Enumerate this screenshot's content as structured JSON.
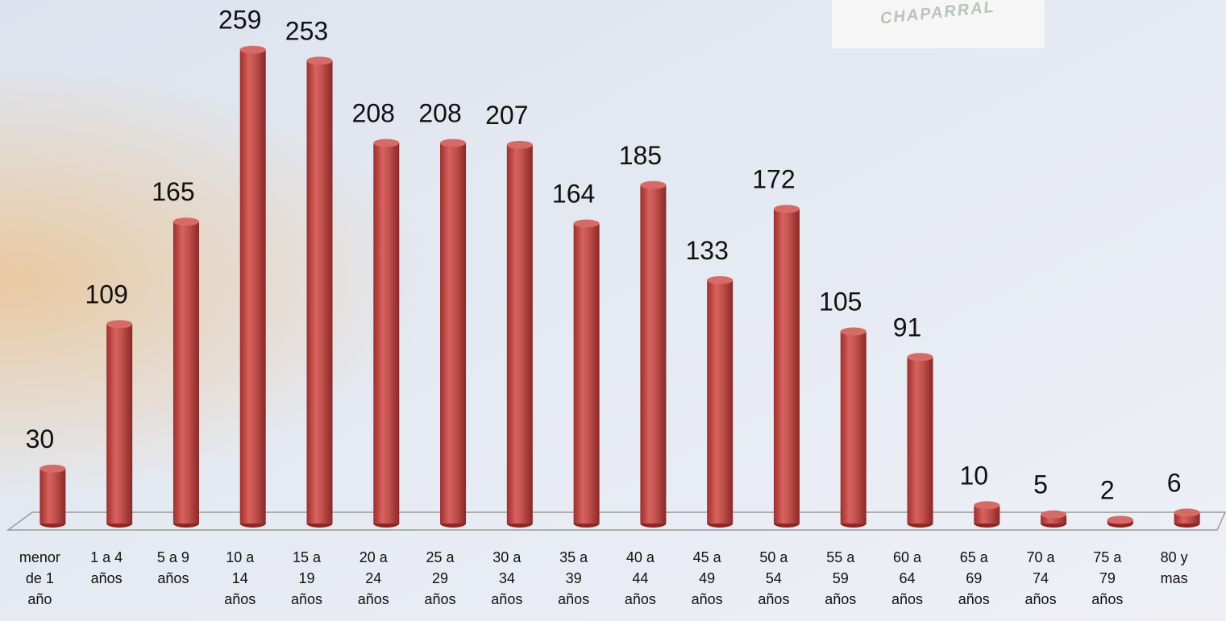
{
  "logo": {
    "text": "CHAPARRAL"
  },
  "chart_data": {
    "type": "bar",
    "categories": [
      "menor de 1 año",
      "1 a 4 años",
      "5 a 9 años",
      "10 a 14 años",
      "15 a 19 años",
      "20 a 24 años",
      "25 a 29 años",
      "30 a 34 años",
      "35 a 39 años",
      "40 a 44 años",
      "45 a 49 años",
      "50 a 54 años",
      "55 a 59 años",
      "60 a 64 años",
      "65 a 69 años",
      "70 a 74 años",
      "75 a 79 años",
      "80 y mas"
    ],
    "values": [
      30,
      109,
      165,
      259,
      253,
      208,
      208,
      207,
      164,
      185,
      133,
      172,
      105,
      91,
      10,
      5,
      2,
      6
    ],
    "color": "#c0504d",
    "ylim": [
      0,
      280
    ]
  }
}
